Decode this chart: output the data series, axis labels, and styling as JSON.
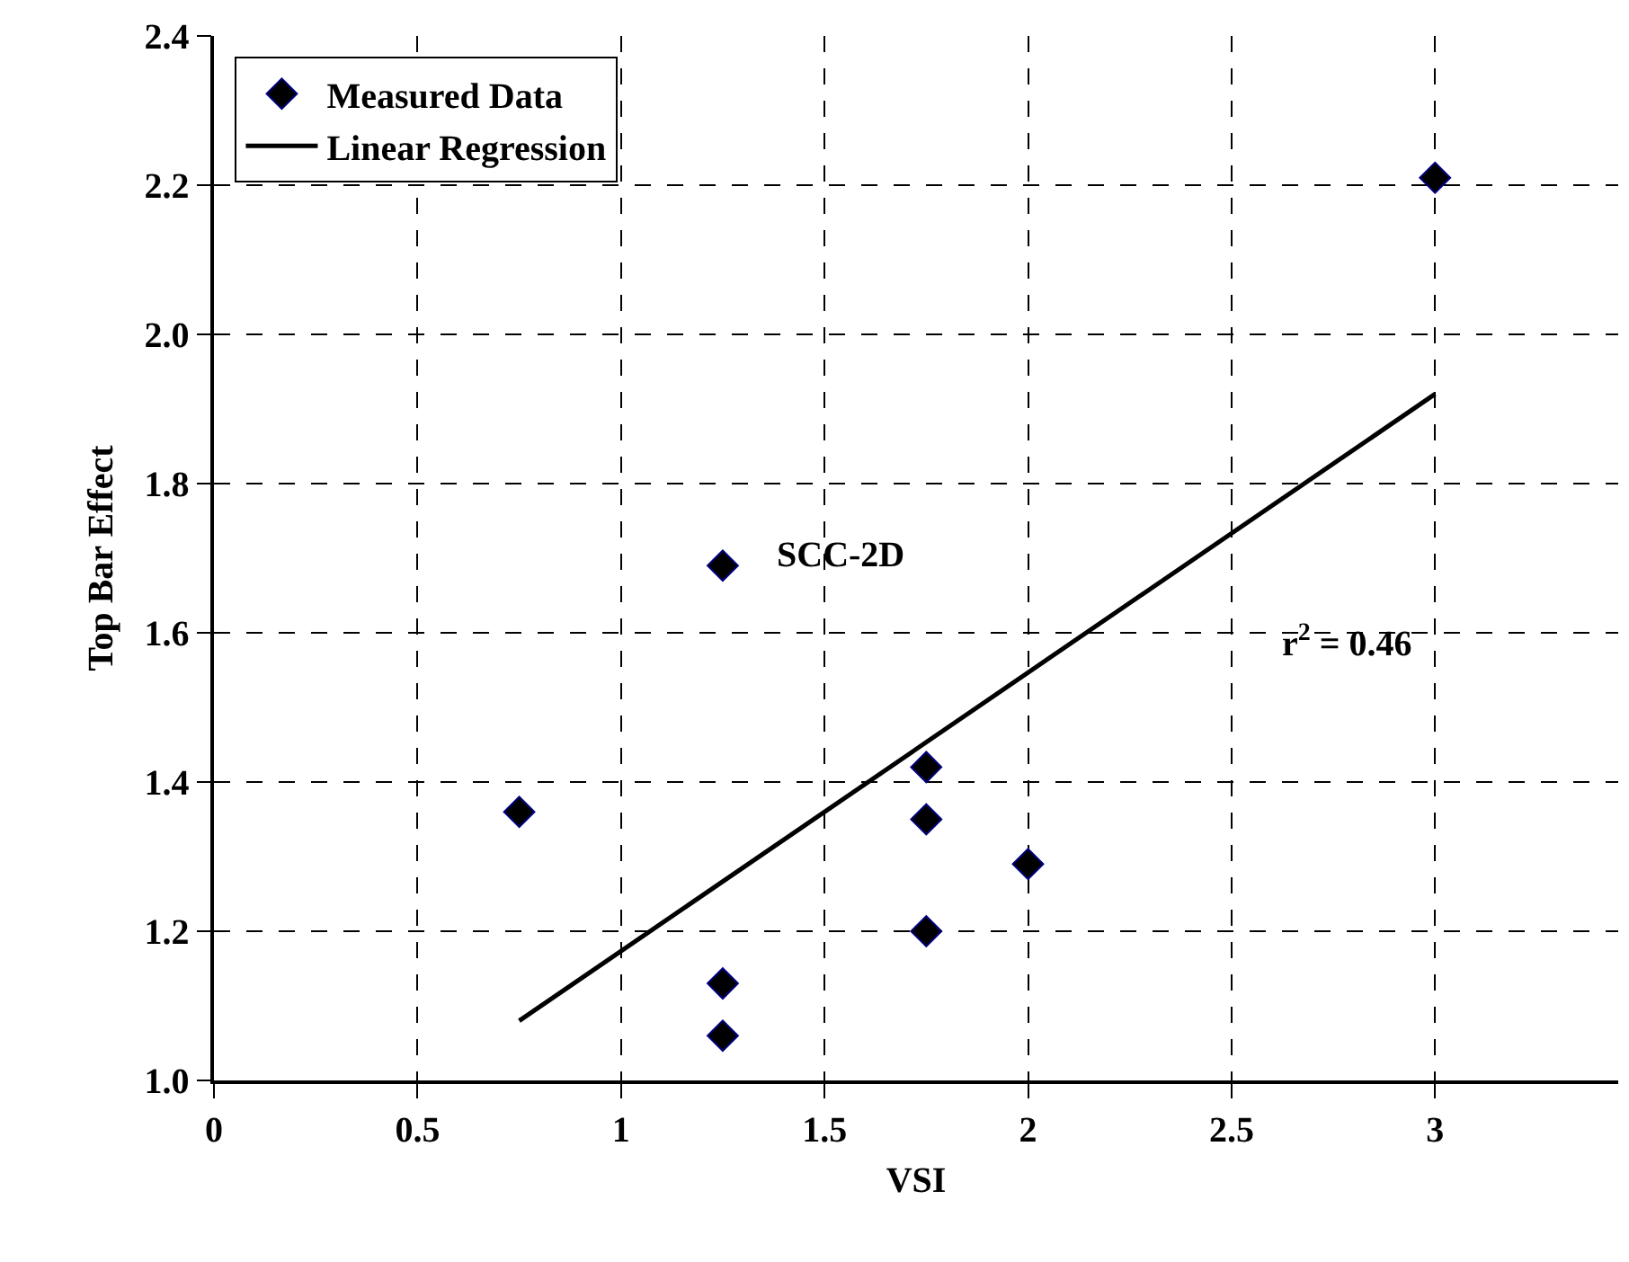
{
  "chart_data": {
    "type": "scatter",
    "xlabel": "VSI",
    "ylabel": "Top Bar Effect",
    "xlim": [
      0,
      3.45
    ],
    "xticks": [
      0,
      0.5,
      1,
      1.5,
      2,
      2.5,
      3
    ],
    "ylim": [
      1.0,
      2.4
    ],
    "yticks": [
      {
        "value": 1.0,
        "label": "1.0"
      },
      1.2,
      1.4,
      1.6,
      1.8,
      {
        "value": 2.0,
        "label": "2.0"
      },
      2.2,
      2.4
    ],
    "grid": true,
    "legend": "top left",
    "series": [
      {
        "name": "Measured Data",
        "marker": "diamond",
        "color": "#000000",
        "x": [
          0.75,
          1.25,
          1.25,
          1.25,
          1.75,
          1.75,
          1.75,
          2.0,
          3.0
        ],
        "values": [
          1.36,
          1.69,
          1.13,
          1.06,
          1.42,
          1.35,
          1.2,
          1.29,
          2.21
        ]
      },
      {
        "name": "Linear Regression",
        "type": "line",
        "color": "#000000",
        "x": [
          0.75,
          3.0
        ],
        "values": [
          1.08,
          1.92
        ],
        "line_style": "solid",
        "marker": "none"
      }
    ],
    "annotations": [
      {
        "text": "SCC-2D",
        "x": 1.25,
        "y": 1.69
      },
      "r$^{2}$ = 0.46"
    ]
  }
}
